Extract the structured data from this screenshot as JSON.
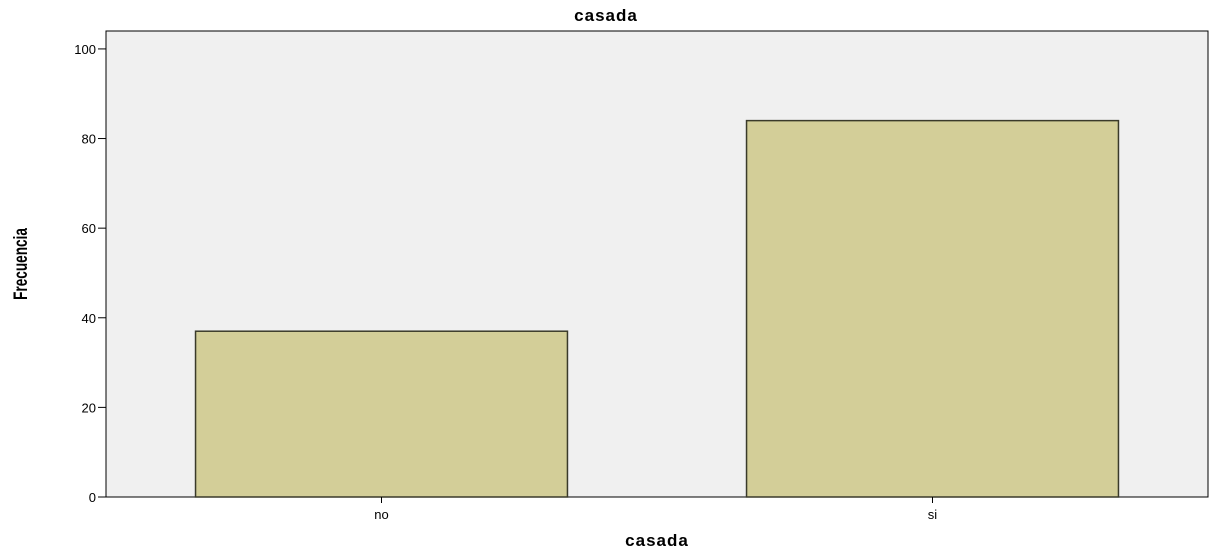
{
  "chart_data": {
    "type": "bar",
    "title": "casada",
    "xlabel": "casada",
    "ylabel": "Frecuencia",
    "categories": [
      "no",
      "si"
    ],
    "values": [
      37,
      84
    ],
    "ylim": [
      0,
      104
    ],
    "yticks": [
      0,
      20,
      40,
      60,
      80,
      100
    ],
    "grid": false,
    "colors": {
      "plot_background": "#f0f0f0",
      "bar_fill": "#d3ce98",
      "bar_stroke": "#3a3a2a"
    }
  }
}
